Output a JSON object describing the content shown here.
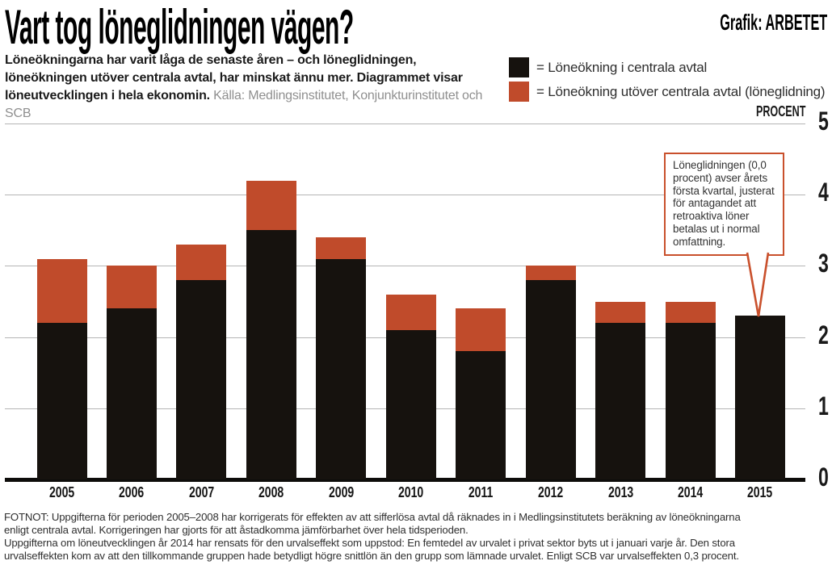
{
  "header": {
    "title": "Vart tog löneglidningen vägen?",
    "credit": "Grafik: ARBETET",
    "intro_bold": "Löneökningarna har varit låga de senaste åren – och löneglidningen, löneökningen utöver centrala avtal, har minskat ännu mer. Diagrammet visar löneutvecklingen i hela ekonomin. ",
    "intro_source": "Källa: Medlingsinstitutet, Konjunkturinstitutet och SCB"
  },
  "legend": {
    "items": [
      {
        "label": "= Löneökning i centrala avtal",
        "color": "#16120e"
      },
      {
        "label": "= Löneökning utöver centrala avtal (löneglidning)",
        "color": "#c04b2b"
      }
    ]
  },
  "axis": {
    "unit_label": "PROCENT",
    "yticks": [
      "0",
      "1",
      "2",
      "3",
      "4",
      "5"
    ]
  },
  "callout": {
    "target_year": "2015",
    "text": "Löneglidningen (0,0\nprocent) avser årets\nförsta kvartal, justerat\nför antagandet att\nretroaktiva löner\nbetalas ut i normal\nomfattning.",
    "border_color": "#c9502c"
  },
  "chart_data": {
    "type": "bar",
    "stacked": true,
    "categories": [
      "2005",
      "2006",
      "2007",
      "2008",
      "2009",
      "2010",
      "2011",
      "2012",
      "2013",
      "2014",
      "2015"
    ],
    "series": [
      {
        "name": "Löneökning i centrala avtal",
        "color": "#16120e",
        "values": [
          2.2,
          2.4,
          2.8,
          3.5,
          3.1,
          2.1,
          1.8,
          2.8,
          2.2,
          2.2,
          2.3
        ]
      },
      {
        "name": "Löneökning utöver centrala avtal (löneglidning)",
        "color": "#c04b2b",
        "values": [
          0.9,
          0.6,
          0.5,
          0.7,
          0.3,
          0.5,
          0.6,
          0.2,
          0.3,
          0.3,
          0.0
        ]
      }
    ],
    "totals": [
      3.1,
      3.0,
      3.3,
      4.2,
      3.4,
      2.6,
      2.4,
      3.0,
      2.5,
      2.5,
      2.3
    ],
    "title": "Vart tog löneglidningen vägen?",
    "xlabel": "",
    "ylabel": "PROCENT",
    "ylim": [
      0,
      5
    ],
    "grid": "horizontal",
    "legend_position": "top-right"
  },
  "footnote": {
    "para1": "FOTNOT: Uppgifterna för perioden 2005–2008 har korrigerats för effekten av att sifferlösa avtal då räknades in i Medlingsinstitutets beräkning av löneökningarna\nenligt centrala avtal. Korrigeringen har gjorts för att åstadkomma jämförbarhet över hela tidsperioden.",
    "para2": "Uppgifterna om löneutvecklingen år 2014 har rensats för den urvalseffekt som uppstod: En femtedel av urvalet i privat sektor byts ut i januari varje år. Den stora\nurvalseffekten kom av att den tillkommande gruppen hade betydligt högre snittlön än den grupp som lämnade urvalet. Enligt SCB var urvalseffekten 0,3 procent."
  }
}
